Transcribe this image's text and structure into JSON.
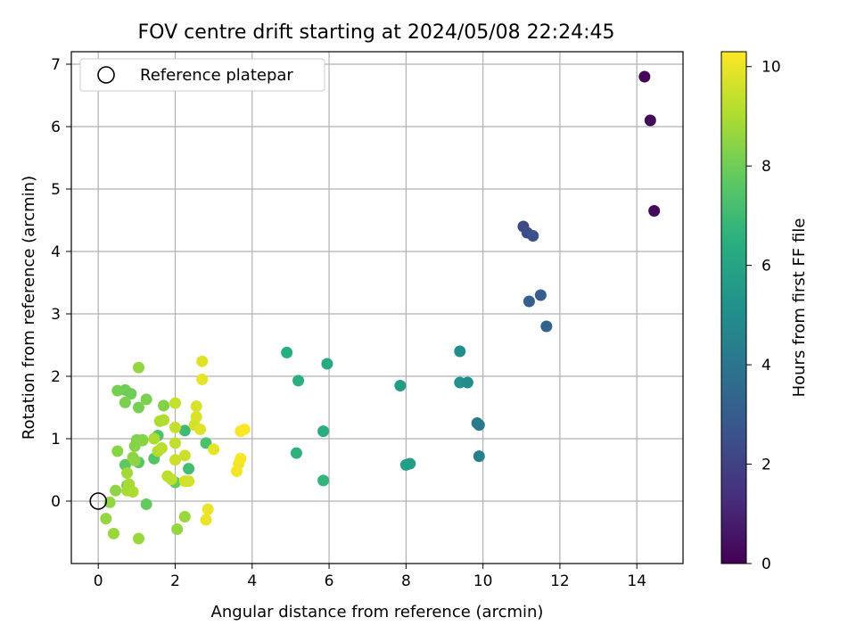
{
  "chart_data": {
    "type": "scatter",
    "title": "FOV centre drift starting at 2024/05/08 22:24:45",
    "xlabel": "Angular distance from reference (arcmin)",
    "ylabel": "Rotation from reference (arcmin)",
    "xlim": [
      -0.7,
      15.2
    ],
    "ylim": [
      -1.0,
      7.2
    ],
    "xticks": [
      0,
      2,
      4,
      6,
      8,
      10,
      12,
      14
    ],
    "yticks": [
      0,
      1,
      2,
      3,
      4,
      5,
      6,
      7
    ],
    "grid": true,
    "legend": {
      "position": "top-left",
      "entries": [
        "Reference platepar"
      ]
    },
    "reference_point": {
      "x": 0,
      "y": 0
    },
    "colorbar": {
      "label": "Hours from first FF file",
      "colormap": "viridis",
      "range": [
        0,
        10.3
      ],
      "ticks": [
        0,
        2,
        4,
        6,
        8,
        10
      ]
    },
    "points": [
      {
        "x": 14.2,
        "y": 6.8,
        "c": 0.1
      },
      {
        "x": 14.35,
        "y": 6.1,
        "c": 0.2
      },
      {
        "x": 14.45,
        "y": 4.65,
        "c": 0.3
      },
      {
        "x": 11.05,
        "y": 4.4,
        "c": 2.3
      },
      {
        "x": 11.15,
        "y": 4.3,
        "c": 2.4
      },
      {
        "x": 11.3,
        "y": 4.25,
        "c": 2.5
      },
      {
        "x": 11.5,
        "y": 3.3,
        "c": 3.0
      },
      {
        "x": 11.2,
        "y": 3.2,
        "c": 3.1
      },
      {
        "x": 11.65,
        "y": 2.8,
        "c": 3.2
      },
      {
        "x": 9.85,
        "y": 1.25,
        "c": 4.1
      },
      {
        "x": 9.9,
        "y": 1.22,
        "c": 4.2
      },
      {
        "x": 9.9,
        "y": 0.72,
        "c": 4.4
      },
      {
        "x": 9.4,
        "y": 2.4,
        "c": 5.1
      },
      {
        "x": 9.4,
        "y": 1.9,
        "c": 5.2
      },
      {
        "x": 9.6,
        "y": 1.9,
        "c": 5.0
      },
      {
        "x": 7.85,
        "y": 1.85,
        "c": 5.6
      },
      {
        "x": 8.0,
        "y": 0.58,
        "c": 5.8
      },
      {
        "x": 8.1,
        "y": 0.6,
        "c": 5.7
      },
      {
        "x": 5.95,
        "y": 2.2,
        "c": 6.2
      },
      {
        "x": 4.9,
        "y": 2.38,
        "c": 6.4
      },
      {
        "x": 5.2,
        "y": 1.93,
        "c": 6.5
      },
      {
        "x": 5.85,
        "y": 1.12,
        "c": 6.4
      },
      {
        "x": 5.15,
        "y": 0.77,
        "c": 6.6
      },
      {
        "x": 5.85,
        "y": 0.33,
        "c": 6.7
      },
      {
        "x": 2.25,
        "y": 1.13,
        "c": 7.0
      },
      {
        "x": 2.35,
        "y": 0.52,
        "c": 7.1
      },
      {
        "x": 2.8,
        "y": 0.93,
        "c": 7.3
      },
      {
        "x": 1.55,
        "y": 1.05,
        "c": 7.4
      },
      {
        "x": 1.45,
        "y": 0.68,
        "c": 7.5
      },
      {
        "x": 1.05,
        "y": 0.62,
        "c": 7.6
      },
      {
        "x": 0.7,
        "y": 0.58,
        "c": 7.7
      },
      {
        "x": 1.25,
        "y": -0.05,
        "c": 7.8
      },
      {
        "x": 2.0,
        "y": 0.3,
        "c": 7.8
      },
      {
        "x": 0.75,
        "y": 0.25,
        "c": 7.9
      },
      {
        "x": 1.15,
        "y": 0.98,
        "c": 7.9
      },
      {
        "x": 0.85,
        "y": 1.72,
        "c": 8.0
      },
      {
        "x": 0.7,
        "y": 1.78,
        "c": 8.0
      },
      {
        "x": 0.5,
        "y": 1.77,
        "c": 8.1
      },
      {
        "x": 1.05,
        "y": 1.5,
        "c": 8.1
      },
      {
        "x": 0.7,
        "y": 1.58,
        "c": 8.2
      },
      {
        "x": 1.25,
        "y": 1.63,
        "c": 8.2
      },
      {
        "x": 1.7,
        "y": 1.53,
        "c": 8.3
      },
      {
        "x": 1.0,
        "y": 0.98,
        "c": 8.3
      },
      {
        "x": 1.15,
        "y": 0.97,
        "c": 8.4
      },
      {
        "x": 0.95,
        "y": 0.88,
        "c": 8.4
      },
      {
        "x": 0.5,
        "y": 0.8,
        "c": 8.4
      },
      {
        "x": 0.9,
        "y": 0.7,
        "c": 8.5
      },
      {
        "x": 0.95,
        "y": 0.65,
        "c": 8.5
      },
      {
        "x": 1.05,
        "y": 2.14,
        "c": 8.6
      },
      {
        "x": 0.45,
        "y": 0.17,
        "c": 8.5
      },
      {
        "x": 0.3,
        "y": -0.02,
        "c": 8.6
      },
      {
        "x": 0.2,
        "y": -0.28,
        "c": 8.6
      },
      {
        "x": 0.4,
        "y": -0.52,
        "c": 8.7
      },
      {
        "x": 1.05,
        "y": -0.6,
        "c": 8.7
      },
      {
        "x": 2.05,
        "y": -0.45,
        "c": 8.6
      },
      {
        "x": 2.25,
        "y": -0.25,
        "c": 8.7
      },
      {
        "x": 0.75,
        "y": 0.45,
        "c": 8.8
      },
      {
        "x": 0.8,
        "y": 0.27,
        "c": 8.9
      },
      {
        "x": 0.75,
        "y": 0.17,
        "c": 8.9
      },
      {
        "x": 0.9,
        "y": 0.15,
        "c": 9.0
      },
      {
        "x": 1.45,
        "y": 1.0,
        "c": 9.0
      },
      {
        "x": 1.6,
        "y": 1.28,
        "c": 9.0
      },
      {
        "x": 1.7,
        "y": 1.3,
        "c": 9.1
      },
      {
        "x": 1.55,
        "y": 0.8,
        "c": 9.1
      },
      {
        "x": 1.65,
        "y": 0.85,
        "c": 9.2
      },
      {
        "x": 1.8,
        "y": 0.4,
        "c": 9.2
      },
      {
        "x": 1.9,
        "y": 0.35,
        "c": 9.3
      },
      {
        "x": 2.0,
        "y": 0.93,
        "c": 9.3
      },
      {
        "x": 2.0,
        "y": 1.57,
        "c": 9.4
      },
      {
        "x": 2.0,
        "y": 1.18,
        "c": 9.4
      },
      {
        "x": 2.0,
        "y": 0.66,
        "c": 9.5
      },
      {
        "x": 2.25,
        "y": 0.73,
        "c": 9.5
      },
      {
        "x": 2.25,
        "y": 0.32,
        "c": 9.6
      },
      {
        "x": 2.35,
        "y": 0.32,
        "c": 9.6
      },
      {
        "x": 2.5,
        "y": 1.22,
        "c": 9.6
      },
      {
        "x": 2.55,
        "y": 1.35,
        "c": 9.7
      },
      {
        "x": 2.55,
        "y": 1.52,
        "c": 9.7
      },
      {
        "x": 2.65,
        "y": 1.15,
        "c": 9.8
      },
      {
        "x": 2.7,
        "y": 2.24,
        "c": 9.8
      },
      {
        "x": 2.7,
        "y": 1.95,
        "c": 9.9
      },
      {
        "x": 3.0,
        "y": 0.83,
        "c": 9.9
      },
      {
        "x": 2.85,
        "y": -0.13,
        "c": 10.0
      },
      {
        "x": 2.8,
        "y": -0.3,
        "c": 10.0
      },
      {
        "x": 3.6,
        "y": 0.48,
        "c": 10.1
      },
      {
        "x": 3.65,
        "y": 0.6,
        "c": 10.1
      },
      {
        "x": 3.7,
        "y": 0.68,
        "c": 10.2
      },
      {
        "x": 3.7,
        "y": 1.12,
        "c": 10.2
      },
      {
        "x": 3.8,
        "y": 1.15,
        "c": 10.3
      }
    ]
  }
}
